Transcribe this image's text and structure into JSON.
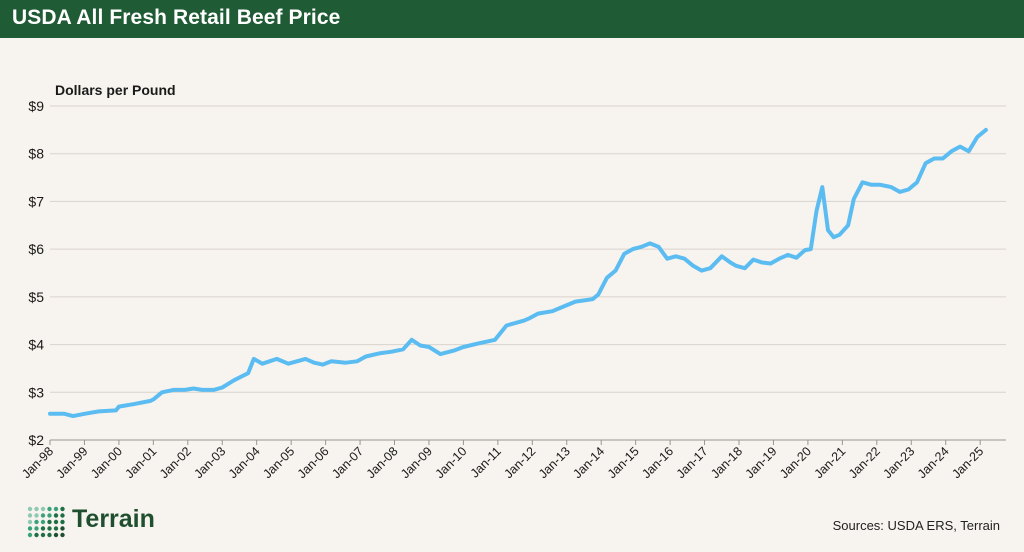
{
  "header": {
    "title": "USDA All Fresh Retail Beef Price"
  },
  "footer": {
    "brand": "Terrain",
    "sources": "Sources: USDA ERS, Terrain"
  },
  "colors": {
    "header_bg": "#1f5b34",
    "line": "#5bbcf2",
    "background": "#f7f3ee",
    "brand": "#1f4f2f"
  },
  "icons": {
    "logo": "terrain-dot-grid-icon"
  },
  "chart_data": {
    "type": "line",
    "title": "",
    "ylabel": "Dollars per Pound",
    "xlabel": "",
    "ylim": [
      2,
      9
    ],
    "yticks": [
      2,
      3,
      4,
      5,
      6,
      7,
      8,
      9
    ],
    "ytick_labels": [
      "$2",
      "$3",
      "$4",
      "$5",
      "$6",
      "$7",
      "$8",
      "$9"
    ],
    "xtick_labels": [
      "Jan-98",
      "Jan-99",
      "Jan-00",
      "Jan-01",
      "Jan-02",
      "Jan-03",
      "Jan-04",
      "Jan-05",
      "Jan-06",
      "Jan-07",
      "Jan-08",
      "Jan-09",
      "Jan-10",
      "Jan-11",
      "Jan-12",
      "Jan-13",
      "Jan-14",
      "Jan-15",
      "Jan-16",
      "Jan-17",
      "Jan-18",
      "Jan-19",
      "Jan-20",
      "Jan-21",
      "Jan-22",
      "Jan-23",
      "Jan-24",
      "Jan-25"
    ],
    "grid": true,
    "series": [
      {
        "name": "",
        "points": [
          [
            "1998-01",
            2.55
          ],
          [
            "1998-06",
            2.55
          ],
          [
            "1998-09",
            2.5
          ],
          [
            "1999-01",
            2.55
          ],
          [
            "1999-06",
            2.6
          ],
          [
            "1999-12",
            2.62
          ],
          [
            "2000-01",
            2.7
          ],
          [
            "2000-06",
            2.75
          ],
          [
            "2000-12",
            2.82
          ],
          [
            "2001-01",
            2.85
          ],
          [
            "2001-04",
            3.0
          ],
          [
            "2001-08",
            3.05
          ],
          [
            "2001-12",
            3.05
          ],
          [
            "2002-03",
            3.08
          ],
          [
            "2002-06",
            3.05
          ],
          [
            "2002-10",
            3.05
          ],
          [
            "2003-01",
            3.1
          ],
          [
            "2003-05",
            3.25
          ],
          [
            "2003-10",
            3.4
          ],
          [
            "2003-12",
            3.7
          ],
          [
            "2004-03",
            3.6
          ],
          [
            "2004-08",
            3.7
          ],
          [
            "2004-12",
            3.6
          ],
          [
            "2005-03",
            3.65
          ],
          [
            "2005-06",
            3.7
          ],
          [
            "2005-09",
            3.62
          ],
          [
            "2005-12",
            3.58
          ],
          [
            "2006-03",
            3.65
          ],
          [
            "2006-08",
            3.62
          ],
          [
            "2006-12",
            3.65
          ],
          [
            "2007-03",
            3.75
          ],
          [
            "2007-08",
            3.82
          ],
          [
            "2007-12",
            3.85
          ],
          [
            "2008-04",
            3.9
          ],
          [
            "2008-07",
            4.1
          ],
          [
            "2008-10",
            3.98
          ],
          [
            "2009-01",
            3.95
          ],
          [
            "2009-05",
            3.8
          ],
          [
            "2009-10",
            3.88
          ],
          [
            "2010-01",
            3.95
          ],
          [
            "2010-06",
            4.02
          ],
          [
            "2010-12",
            4.1
          ],
          [
            "2011-04",
            4.4
          ],
          [
            "2011-10",
            4.5
          ],
          [
            "2011-12",
            4.55
          ],
          [
            "2012-03",
            4.65
          ],
          [
            "2012-08",
            4.7
          ],
          [
            "2012-12",
            4.8
          ],
          [
            "2013-04",
            4.9
          ],
          [
            "2013-10",
            4.95
          ],
          [
            "2013-12",
            5.05
          ],
          [
            "2014-03",
            5.4
          ],
          [
            "2014-06",
            5.55
          ],
          [
            "2014-09",
            5.9
          ],
          [
            "2014-12",
            6.0
          ],
          [
            "2015-03",
            6.05
          ],
          [
            "2015-06",
            6.12
          ],
          [
            "2015-09",
            6.05
          ],
          [
            "2015-12",
            5.8
          ],
          [
            "2016-03",
            5.85
          ],
          [
            "2016-06",
            5.8
          ],
          [
            "2016-09",
            5.65
          ],
          [
            "2016-12",
            5.55
          ],
          [
            "2017-03",
            5.6
          ],
          [
            "2017-07",
            5.85
          ],
          [
            "2017-10",
            5.72
          ],
          [
            "2017-12",
            5.65
          ],
          [
            "2018-03",
            5.6
          ],
          [
            "2018-06",
            5.78
          ],
          [
            "2018-09",
            5.72
          ],
          [
            "2018-12",
            5.7
          ],
          [
            "2019-03",
            5.8
          ],
          [
            "2019-06",
            5.88
          ],
          [
            "2019-09",
            5.82
          ],
          [
            "2019-12",
            5.98
          ],
          [
            "2020-02",
            6.0
          ],
          [
            "2020-04",
            6.8
          ],
          [
            "2020-06",
            7.3
          ],
          [
            "2020-08",
            6.4
          ],
          [
            "2020-10",
            6.25
          ],
          [
            "2020-12",
            6.3
          ],
          [
            "2021-03",
            6.5
          ],
          [
            "2021-05",
            7.05
          ],
          [
            "2021-08",
            7.4
          ],
          [
            "2021-11",
            7.35
          ],
          [
            "2022-02",
            7.35
          ],
          [
            "2022-06",
            7.3
          ],
          [
            "2022-09",
            7.2
          ],
          [
            "2022-12",
            7.25
          ],
          [
            "2023-03",
            7.4
          ],
          [
            "2023-06",
            7.8
          ],
          [
            "2023-09",
            7.9
          ],
          [
            "2023-12",
            7.9
          ],
          [
            "2024-03",
            8.05
          ],
          [
            "2024-06",
            8.15
          ],
          [
            "2024-09",
            8.05
          ],
          [
            "2024-12",
            8.35
          ],
          [
            "2025-03",
            8.5
          ]
        ]
      }
    ]
  }
}
